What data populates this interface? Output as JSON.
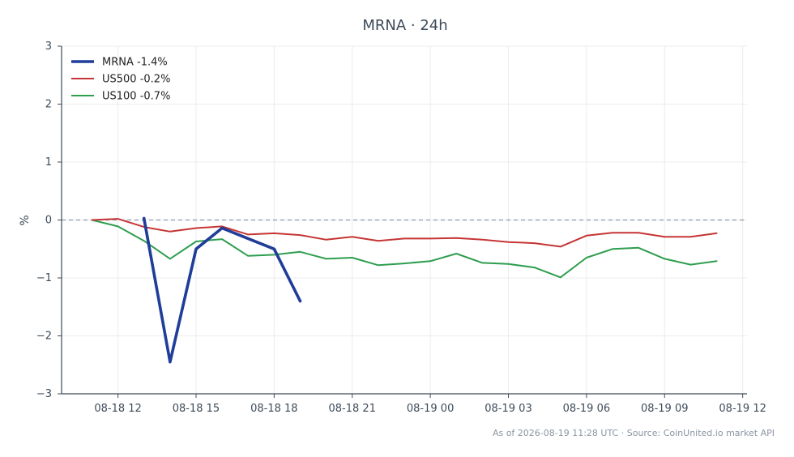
{
  "chart_data": {
    "type": "line",
    "title": "MRNA · 24h",
    "xlabel": "",
    "ylabel": "%",
    "ylim": [
      -3,
      3
    ],
    "xlim": [
      "2026-08-18 09:50",
      "2026-08-19 12:10"
    ],
    "yticks": [
      3,
      2,
      1,
      0,
      -1,
      -2,
      -3
    ],
    "ytick_labels": [
      "3",
      "2",
      "1",
      "0",
      "−1",
      "−2",
      "−3"
    ],
    "xticks": [
      "2026-08-18 12:00",
      "2026-08-18 15:00",
      "2026-08-18 18:00",
      "2026-08-18 21:00",
      "2026-08-19 00:00",
      "2026-08-19 03:00",
      "2026-08-19 06:00",
      "2026-08-19 09:00",
      "2026-08-19 12:00"
    ],
    "xtick_labels": [
      "08-18 12",
      "08-18 15",
      "08-18 18",
      "08-18 21",
      "08-19 00",
      "08-19 03",
      "08-19 06",
      "08-19 09",
      "08-19 12"
    ],
    "grid": true,
    "zero_line": true,
    "legend_position": "top-left",
    "series": [
      {
        "name": "MRNA -1.4%",
        "color": "#1f3d99",
        "x": [
          "2026-08-18 13:00",
          "2026-08-18 14:00",
          "2026-08-18 15:00",
          "2026-08-18 16:00",
          "2026-08-18 17:00",
          "2026-08-18 18:00",
          "2026-08-18 19:00"
        ],
        "y": [
          0.03,
          -2.45,
          -0.5,
          -0.14,
          -0.32,
          -0.5,
          -1.4
        ]
      },
      {
        "name": "US500 -0.2%",
        "color": "#c63535",
        "x": [
          "2026-08-18 11:00",
          "2026-08-18 12:00",
          "2026-08-18 13:00",
          "2026-08-18 14:00",
          "2026-08-18 15:00",
          "2026-08-18 16:00",
          "2026-08-18 17:00",
          "2026-08-18 18:00",
          "2026-08-18 19:00",
          "2026-08-18 20:00",
          "2026-08-18 21:00",
          "2026-08-18 22:00",
          "2026-08-18 23:00",
          "2026-08-19 00:00",
          "2026-08-19 01:00",
          "2026-08-19 02:00",
          "2026-08-19 03:00",
          "2026-08-19 04:00",
          "2026-08-19 05:00",
          "2026-08-19 06:00",
          "2026-08-19 07:00",
          "2026-08-19 08:00",
          "2026-08-19 09:00",
          "2026-08-19 10:00",
          "2026-08-19 11:00"
        ],
        "y": [
          0.0,
          0.02,
          -0.12,
          -0.2,
          -0.14,
          -0.11,
          -0.25,
          -0.23,
          -0.26,
          -0.34,
          -0.29,
          -0.36,
          -0.32,
          -0.32,
          -0.31,
          -0.34,
          -0.38,
          -0.4,
          -0.46,
          -0.27,
          -0.22,
          -0.22,
          -0.29,
          -0.29,
          -0.23
        ]
      },
      {
        "name": "US100 -0.7%",
        "color": "#2e9e4f",
        "x": [
          "2026-08-18 11:00",
          "2026-08-18 12:00",
          "2026-08-18 13:00",
          "2026-08-18 14:00",
          "2026-08-18 15:00",
          "2026-08-18 16:00",
          "2026-08-18 17:00",
          "2026-08-18 18:00",
          "2026-08-18 19:00",
          "2026-08-18 20:00",
          "2026-08-18 21:00",
          "2026-08-18 22:00",
          "2026-08-18 23:00",
          "2026-08-19 00:00",
          "2026-08-19 01:00",
          "2026-08-19 02:00",
          "2026-08-19 03:00",
          "2026-08-19 04:00",
          "2026-08-19 05:00",
          "2026-08-19 06:00",
          "2026-08-19 07:00",
          "2026-08-19 08:00",
          "2026-08-19 09:00",
          "2026-08-19 10:00",
          "2026-08-19 11:00"
        ],
        "y": [
          0.0,
          -0.11,
          -0.36,
          -0.67,
          -0.37,
          -0.33,
          -0.62,
          -0.6,
          -0.55,
          -0.67,
          -0.65,
          -0.78,
          -0.75,
          -0.71,
          -0.58,
          -0.74,
          -0.76,
          -0.82,
          -0.99,
          -0.65,
          -0.5,
          -0.48,
          -0.67,
          -0.77,
          -0.71
        ]
      }
    ]
  },
  "footer": {
    "text": "As of 2026-08-19 11:28 UTC · Source: CoinUnited.io market API"
  }
}
